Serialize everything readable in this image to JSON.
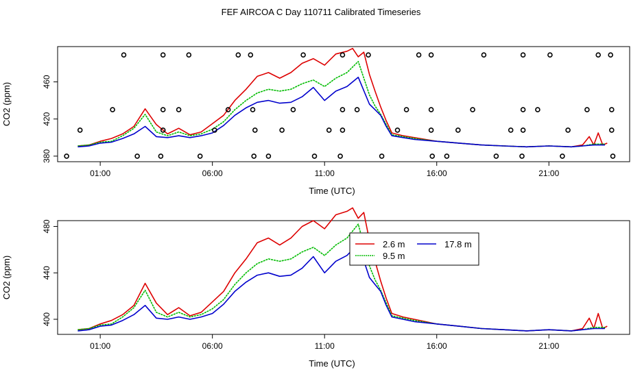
{
  "title": "FEF AIRCOA C  Day 110711  Calibrated Timeseries",
  "colors": {
    "red": "#dd0000",
    "green": "#00bb00",
    "blue": "#0000cc"
  },
  "chart_data": [
    {
      "type": "line",
      "panel": "top",
      "xlabel": "Time (UTC)",
      "ylabel": "CO2 (ppm)",
      "xlim": [
        -0.9,
        24.6
      ],
      "ylim": [
        374,
        498
      ],
      "xticks": [
        1,
        6,
        11,
        16,
        21
      ],
      "xtick_labels": [
        "01:00",
        "06:00",
        "11:00",
        "16:00",
        "21:00"
      ],
      "yticks": [
        380,
        420,
        460
      ],
      "ytick_labels": [
        "380",
        "420",
        "460"
      ],
      "series": [
        {
          "name": "2.6 m",
          "color": "red",
          "x": [
            0,
            0.5,
            1,
            1.5,
            2,
            2.5,
            3,
            3.5,
            4,
            4.5,
            5,
            5.5,
            6,
            6.5,
            7,
            7.5,
            8,
            8.5,
            9,
            9.5,
            10,
            10.5,
            11,
            11.5,
            12,
            12.25,
            12.5,
            12.75,
            13,
            13.25,
            13.5,
            13.75,
            14,
            14.5,
            15,
            16,
            17,
            18,
            19,
            20,
            21,
            22,
            22.5,
            22.8,
            23,
            23.2,
            23.4,
            23.6
          ],
          "y": [
            391,
            392,
            396,
            399,
            404,
            412,
            431,
            414,
            404,
            410,
            403,
            406,
            415,
            424,
            440,
            452,
            466,
            470,
            464,
            470,
            480,
            485,
            478,
            490,
            493,
            496,
            487,
            492,
            468,
            450,
            433,
            418,
            405,
            402,
            400,
            396,
            394,
            392,
            391,
            390,
            391,
            390,
            392,
            401,
            392,
            405,
            392,
            394
          ]
        },
        {
          "name": "9.5 m",
          "color": "green",
          "x": [
            0,
            0.5,
            1,
            1.5,
            2,
            2.5,
            3,
            3.5,
            4,
            4.5,
            5,
            5.5,
            6,
            6.5,
            7,
            7.5,
            8,
            8.5,
            9,
            9.5,
            10,
            10.5,
            11,
            11.5,
            12,
            12.5,
            13,
            13.25,
            13.5,
            13.75,
            14,
            14.5,
            15,
            16,
            17,
            18,
            19,
            20,
            21,
            22,
            22.5,
            23,
            23.5
          ],
          "y": [
            391,
            392,
            395,
            396,
            402,
            410,
            425,
            406,
            402,
            406,
            402,
            404,
            409,
            417,
            430,
            440,
            448,
            452,
            450,
            452,
            458,
            462,
            455,
            464,
            470,
            482,
            446,
            434,
            425,
            414,
            403,
            401,
            399,
            396,
            394,
            392,
            391,
            390,
            391,
            390,
            391,
            393,
            393
          ]
        },
        {
          "name": "17.8 m",
          "color": "blue",
          "x": [
            0,
            0.5,
            1,
            1.5,
            2,
            2.5,
            3,
            3.5,
            4,
            4.5,
            5,
            5.5,
            6,
            6.5,
            7,
            7.5,
            8,
            8.5,
            9,
            9.5,
            10,
            10.5,
            11,
            11.5,
            12,
            12.5,
            13,
            13.25,
            13.5,
            13.75,
            14,
            14.5,
            15,
            16,
            17,
            18,
            19,
            20,
            21,
            22,
            22.5,
            23,
            23.5
          ],
          "y": [
            390,
            391,
            394,
            395,
            399,
            404,
            412,
            401,
            400,
            402,
            400,
            402,
            405,
            413,
            424,
            432,
            438,
            440,
            437,
            438,
            444,
            454,
            440,
            450,
            455,
            465,
            436,
            430,
            424,
            412,
            402,
            400,
            398,
            396,
            394,
            392,
            391,
            390,
            391,
            390,
            391,
            392,
            392
          ]
        }
      ],
      "markers": {
        "shape": "circle",
        "x": [
          2.05,
          3.8,
          4.95,
          7.15,
          7.7,
          10.05,
          11.8,
          12.95,
          15.2,
          15.75,
          18.1,
          19.85,
          21.05,
          23.2,
          23.75,
          1.55,
          3.8,
          4.5,
          6.7,
          7.8,
          9.6,
          11.8,
          12.45,
          14.65,
          15.75,
          17.6,
          19.85,
          20.5,
          22.7,
          23.8,
          0.1,
          3.8,
          6.1,
          7.9,
          9.1,
          11.2,
          11.8,
          14.25,
          15.75,
          16.95,
          19.3,
          19.85,
          21.85,
          23.8,
          -0.5,
          2.65,
          3.7,
          5.45,
          7.85,
          8.5,
          10.55,
          11.7,
          13.55,
          15.8,
          16.45,
          18.65,
          19.8,
          21.6,
          23.85
        ],
        "y": [
          489,
          489,
          489,
          489,
          489,
          489,
          489,
          489,
          489,
          489,
          489,
          489,
          489,
          489,
          489,
          430,
          430,
          430,
          430,
          430,
          430,
          430,
          430,
          430,
          430,
          430,
          430,
          430,
          430,
          430,
          408,
          408,
          408,
          408,
          408,
          408,
          408,
          408,
          408,
          408,
          408,
          408,
          408,
          408,
          380,
          380,
          380,
          380,
          380,
          380,
          380,
          380,
          380,
          380,
          380,
          380,
          380,
          380,
          380
        ]
      }
    },
    {
      "type": "line",
      "panel": "bottom",
      "xlabel": "Time (UTC)",
      "ylabel": "CO2 (ppm)",
      "xlim": [
        -0.9,
        24.6
      ],
      "ylim": [
        387,
        485
      ],
      "xticks": [
        1,
        6,
        11,
        16,
        21
      ],
      "xtick_labels": [
        "01:00",
        "06:00",
        "11:00",
        "16:00",
        "21:00"
      ],
      "yticks": [
        400,
        440,
        480
      ],
      "ytick_labels": [
        "400",
        "440",
        "480"
      ],
      "legend": {
        "position": "top-right",
        "entries": [
          {
            "label": "2.6 m",
            "color": "red"
          },
          {
            "label": "17.8 m",
            "color": "blue"
          },
          {
            "label": "9.5 m",
            "color": "green"
          }
        ]
      }
    }
  ]
}
